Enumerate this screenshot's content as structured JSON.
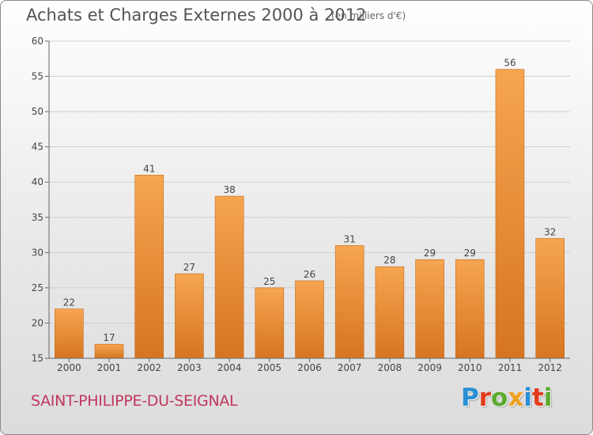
{
  "header": {
    "title": "Achats et Charges Externes 2000 à 2012",
    "subtitle": "(en milliers d'€)"
  },
  "footer": {
    "city": "SAINT-PHILIPPE-DU-SEIGNAL",
    "brand": "Proxiti",
    "brand_colors": [
      "#2a8fd4",
      "#e03c1b",
      "#5aab2e",
      "#f0a020",
      "#2a8fd4",
      "#e03c1b",
      "#5aab2e"
    ]
  },
  "colors": {
    "bar_top": "#f6a550",
    "bar_bottom": "#d67520",
    "axis": "#666666",
    "grid": "#d0d0d0",
    "city_text": "#c0375d"
  },
  "chart_data": {
    "type": "bar",
    "title": "Achats et Charges Externes 2000 à 2012",
    "subtitle": "(en milliers d'€)",
    "categories": [
      "2000",
      "2001",
      "2002",
      "2003",
      "2004",
      "2005",
      "2006",
      "2007",
      "2008",
      "2009",
      "2010",
      "2011",
      "2012"
    ],
    "values": [
      22,
      17,
      41,
      27,
      38,
      25,
      26,
      31,
      28,
      29,
      29,
      56,
      32
    ],
    "ylim": [
      15,
      60
    ],
    "yticks": [
      15,
      20,
      25,
      30,
      35,
      40,
      45,
      50,
      55,
      60
    ],
    "grid": true,
    "data_labels": true
  }
}
